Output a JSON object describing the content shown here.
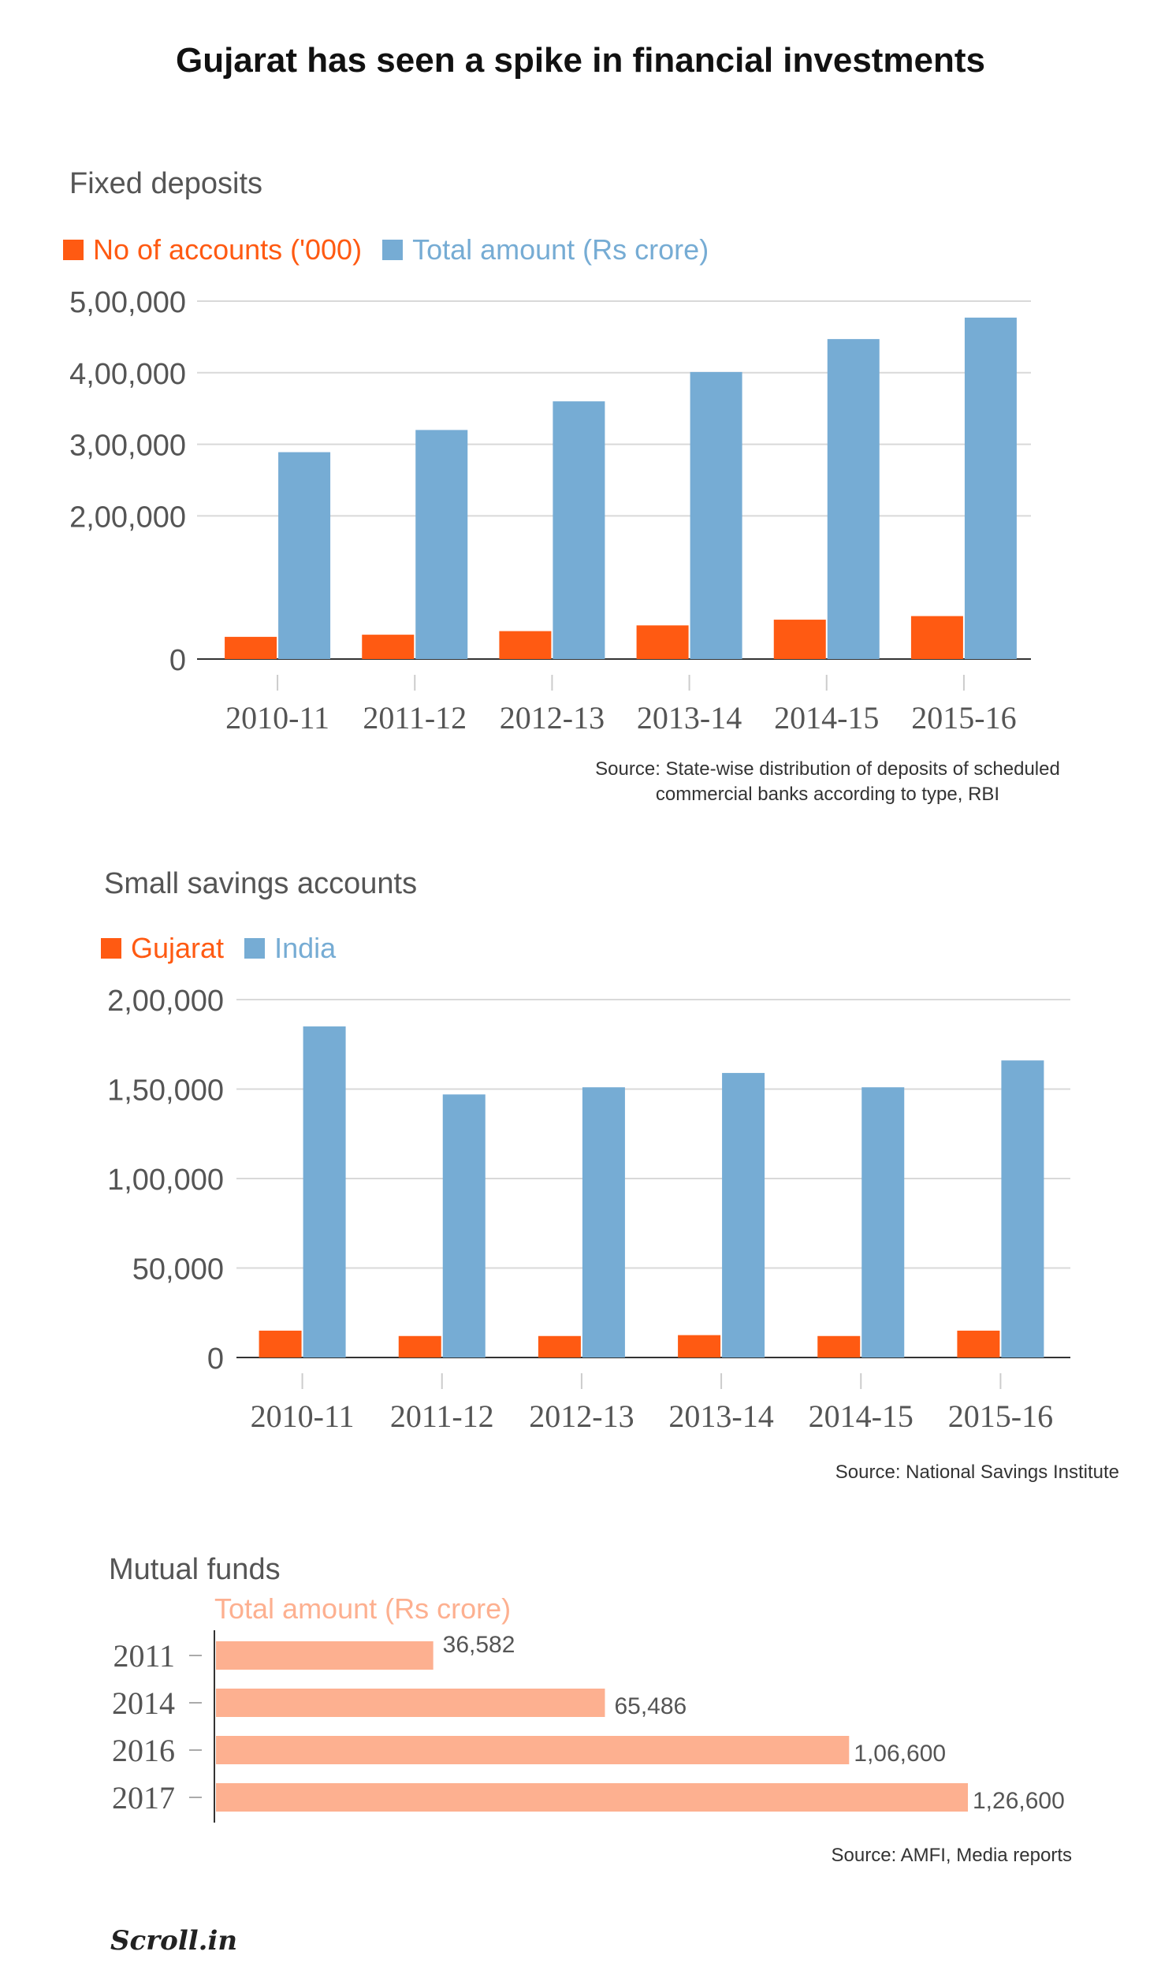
{
  "title": "Gujarat has seen a spike in financial investments",
  "colors": {
    "orange": "#ff5a12",
    "blue": "#76acd4",
    "peach": "#fdb090",
    "grid": "#d9d9d9",
    "axis": "#555555",
    "text": "#555555"
  },
  "chart_data": [
    {
      "type": "bar",
      "title": "Fixed deposits",
      "categories": [
        "2010-11",
        "2011-12",
        "2012-13",
        "2013-14",
        "2014-15",
        "2015-16"
      ],
      "series": [
        {
          "name": "No of accounts ('000)",
          "values": [
            31000,
            34000,
            39000,
            47000,
            55000,
            60000
          ]
        },
        {
          "name": "Total amount (Rs crore)",
          "values": [
            289000,
            320000,
            360000,
            401000,
            447000,
            477000
          ]
        }
      ],
      "yticks": [
        "0",
        "2,00,000",
        "3,00,000",
        "4,00,000",
        "5,00,000"
      ],
      "ytick_values": [
        0,
        200000,
        300000,
        400000,
        500000
      ],
      "ylim": [
        0,
        500000
      ],
      "grid": true,
      "legend": "top-left",
      "source": [
        "Source: State-wise distribution of deposits of scheduled",
        "commercial banks according to type, RBI"
      ]
    },
    {
      "type": "bar",
      "title": "Small savings accounts",
      "categories": [
        "2010-11",
        "2011-12",
        "2012-13",
        "2013-14",
        "2014-15",
        "2015-16"
      ],
      "series": [
        {
          "name": "Gujarat",
          "values": [
            15000,
            12000,
            12000,
            12500,
            12000,
            15000
          ]
        },
        {
          "name": "India",
          "values": [
            185000,
            147000,
            151000,
            159000,
            151000,
            166000
          ]
        }
      ],
      "yticks": [
        "0",
        "50,000",
        "1,00,000",
        "1,50,000",
        "2,00,000"
      ],
      "ytick_values": [
        0,
        50000,
        100000,
        150000,
        200000
      ],
      "ylim": [
        0,
        200000
      ],
      "grid": true,
      "legend": "top-left",
      "source": [
        "Source: National Savings Institute"
      ]
    },
    {
      "type": "bar",
      "orientation": "horizontal",
      "title": "Mutual funds",
      "categories": [
        "2011",
        "2014",
        "2016",
        "2017"
      ],
      "series": [
        {
          "name": "Total amount (Rs crore)",
          "values": [
            36582,
            65486,
            106600,
            126600
          ]
        }
      ],
      "value_labels": [
        "36,582",
        "65,486",
        "1,06,600",
        "1,26,600"
      ],
      "xlim": [
        0,
        126600
      ],
      "source": [
        "Source: AMFI, Media reports"
      ]
    }
  ],
  "logo": "Scroll.in"
}
